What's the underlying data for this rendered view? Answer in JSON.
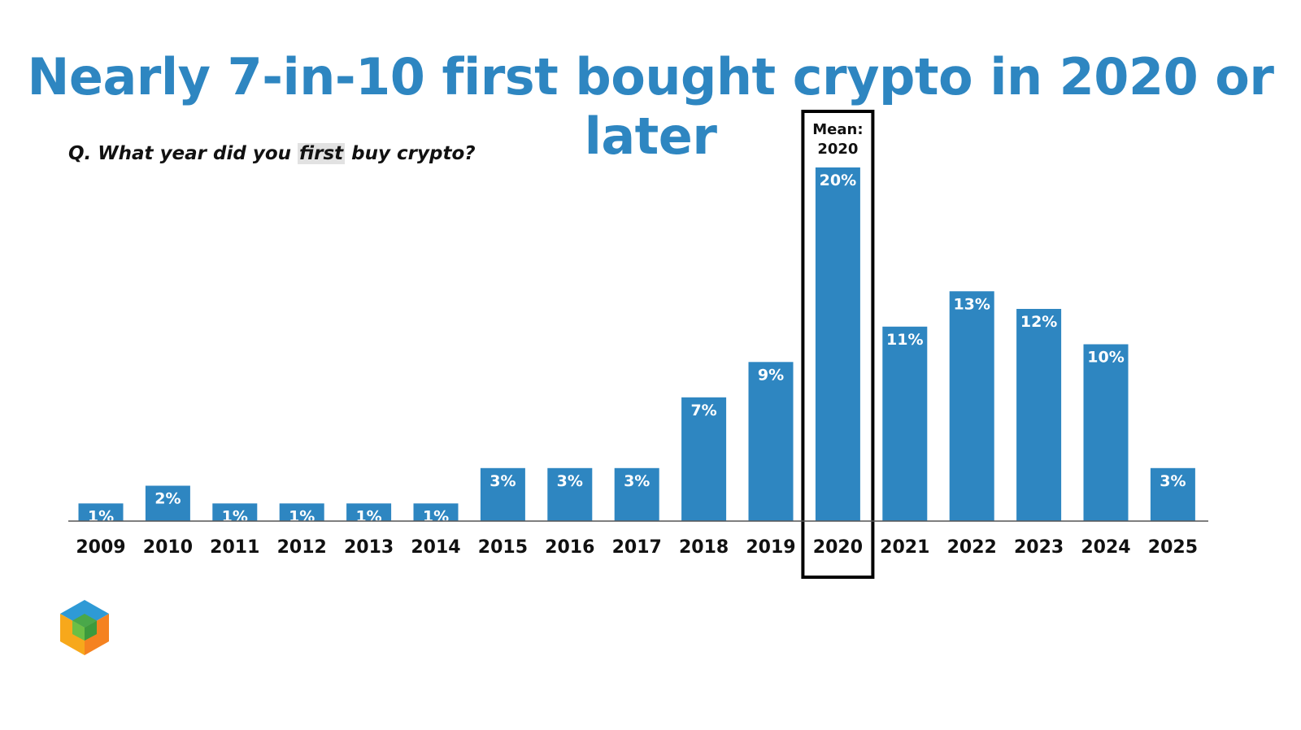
{
  "title": "Nearly 7-in-10 first bought crypto in 2020 or later",
  "question": {
    "before": "Q. What year did you ",
    "highlight": "first",
    "after": " buy crypto?"
  },
  "mean": {
    "label": "Mean:",
    "value": "2020",
    "category": "2020"
  },
  "colors": {
    "title": "#2e86c1",
    "bar": "#2e86c1",
    "text": "#111111"
  },
  "logo_icon": "hexagon-cube-logo-icon",
  "chart_data": {
    "type": "bar",
    "title": "Nearly 7-in-10 first bought crypto in 2020 or later",
    "xlabel": "",
    "ylabel": "",
    "categories": [
      "2009",
      "2010",
      "2011",
      "2012",
      "2013",
      "2014",
      "2015",
      "2016",
      "2017",
      "2018",
      "2019",
      "2020",
      "2021",
      "2022",
      "2023",
      "2024",
      "2025"
    ],
    "values": [
      1,
      2,
      1,
      1,
      1,
      1,
      3,
      3,
      3,
      7,
      9,
      20,
      11,
      13,
      12,
      10,
      3
    ],
    "labels": [
      "1%",
      "2%",
      "1%",
      "1%",
      "1%",
      "1%",
      "3%",
      "3%",
      "3%",
      "7%",
      "9%",
      "20%",
      "11%",
      "13%",
      "12%",
      "10%",
      "3%"
    ],
    "ylim": [
      0,
      20
    ],
    "grid": false,
    "value_labels": "inside-top"
  }
}
